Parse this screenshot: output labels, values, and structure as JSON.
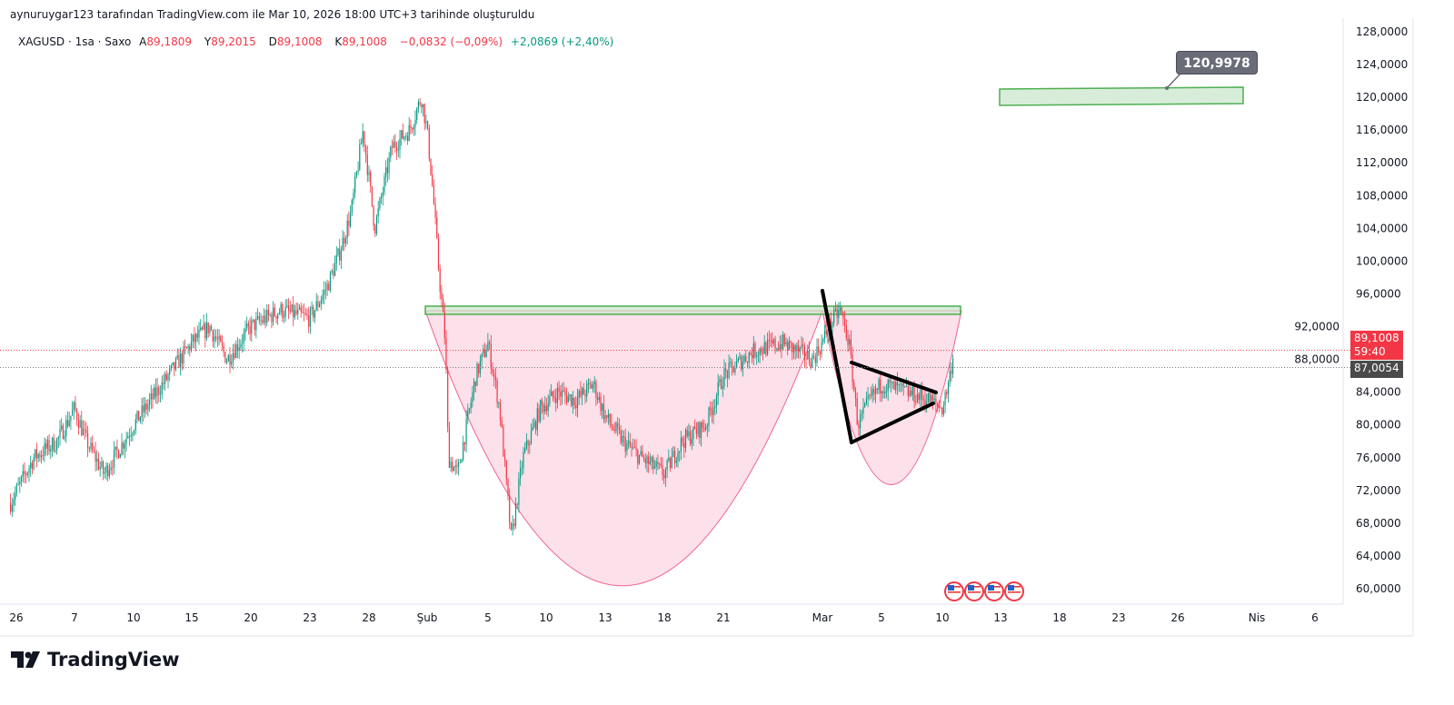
{
  "credit": "aynuruygar123 tarafından TradingView.com ile Mar 10, 2026 18:00 UTC+3 tarihinde oluşturuldu",
  "legend": {
    "symbol": "XAGUSD · 1sa · Saxo",
    "open_label": "A",
    "open": "89,1809",
    "high_label": "Y",
    "high": "89,2015",
    "low_label": "D",
    "low": "89,1008",
    "close_label": "K",
    "close": "89,1008",
    "change": "−0,0832 (−0,09%)",
    "change2": "+2,0869 (+2,40%)"
  },
  "price_labels": {
    "last": "89,1008",
    "countdown": "59:40",
    "line2": "87,0054"
  },
  "target_label": "120,9978",
  "logo": "TradingView",
  "colors": {
    "up": "#089981",
    "down": "#f23645",
    "cup": "#f8bbd0",
    "zone": "#c8e6c9",
    "zone_border": "#4caf50"
  },
  "chart_data": {
    "type": "candlestick",
    "title": "XAGUSD 1h",
    "ylim": [
      58,
      130
    ],
    "y_ticks": [
      "60,0000",
      "64,0000",
      "68,0000",
      "72,0000",
      "76,0000",
      "80,0000",
      "84,0000",
      "88,0000",
      "92,0000",
      "96,0000",
      "100,0000",
      "104,0000",
      "108,0000",
      "112,0000",
      "116,0000",
      "120,0000",
      "124,0000",
      "128,0000"
    ],
    "y_tick_values": [
      60,
      64,
      68,
      72,
      76,
      80,
      84,
      88,
      92,
      96,
      100,
      104,
      108,
      112,
      116,
      120,
      124,
      128
    ],
    "x_ticks": [
      "26",
      "7",
      "10",
      "15",
      "20",
      "23",
      "28",
      "Şub",
      "5",
      "10",
      "13",
      "18",
      "21",
      "Mar",
      "5",
      "10",
      "13",
      "18",
      "23",
      "26",
      "Nis",
      "6"
    ],
    "price_path": [
      [
        -0.1,
        70.5
      ],
      [
        0.3,
        76
      ],
      [
        0.7,
        78
      ],
      [
        1.0,
        82
      ],
      [
        1.2,
        78
      ],
      [
        1.5,
        74
      ],
      [
        2.0,
        80
      ],
      [
        2.4,
        84
      ],
      [
        3.0,
        90
      ],
      [
        3.3,
        92
      ],
      [
        3.6,
        88
      ],
      [
        4.0,
        92
      ],
      [
        4.5,
        94
      ],
      [
        5.0,
        93
      ],
      [
        5.3,
        97
      ],
      [
        5.5,
        101
      ],
      [
        5.7,
        106
      ],
      [
        5.9,
        116
      ],
      [
        6.1,
        104
      ],
      [
        6.4,
        114
      ],
      [
        6.7,
        116
      ],
      [
        6.9,
        120
      ],
      [
        7.0,
        116
      ],
      [
        7.1,
        108
      ],
      [
        7.2,
        98
      ],
      [
        7.3,
        90
      ],
      [
        7.35,
        76
      ],
      [
        7.5,
        74
      ],
      [
        7.8,
        86
      ],
      [
        8.0,
        90
      ],
      [
        8.1,
        86
      ],
      [
        8.2,
        82
      ],
      [
        8.35,
        70
      ],
      [
        8.4,
        66
      ],
      [
        8.6,
        76
      ],
      [
        8.9,
        82
      ],
      [
        9.2,
        84
      ],
      [
        9.5,
        83
      ],
      [
        9.8,
        85
      ],
      [
        10.0,
        81
      ],
      [
        10.3,
        78
      ],
      [
        10.6,
        76
      ],
      [
        11.0,
        74
      ],
      [
        11.3,
        78
      ],
      [
        11.7,
        80
      ],
      [
        12.0,
        86
      ],
      [
        12.3,
        89
      ],
      [
        12.6,
        90
      ],
      [
        12.9,
        88
      ],
      [
        13.1,
        92
      ],
      [
        13.3,
        94
      ],
      [
        13.45,
        90
      ],
      [
        13.6,
        80
      ],
      [
        13.8,
        83
      ],
      [
        14.0,
        85
      ],
      [
        14.4,
        84
      ],
      [
        14.8,
        83
      ],
      [
        15.0,
        82
      ],
      [
        15.1,
        85
      ],
      [
        15.2,
        89.1
      ]
    ],
    "last_price": 89.1008,
    "line2_price": 87.0054,
    "annotations": {
      "resistance_zone": [
        93.5,
        94.5
      ],
      "target_zone": [
        119.5,
        121
      ],
      "target_price": 120.9978,
      "cup_bottom": 60.3,
      "handle_bottom": 72.7
    }
  }
}
